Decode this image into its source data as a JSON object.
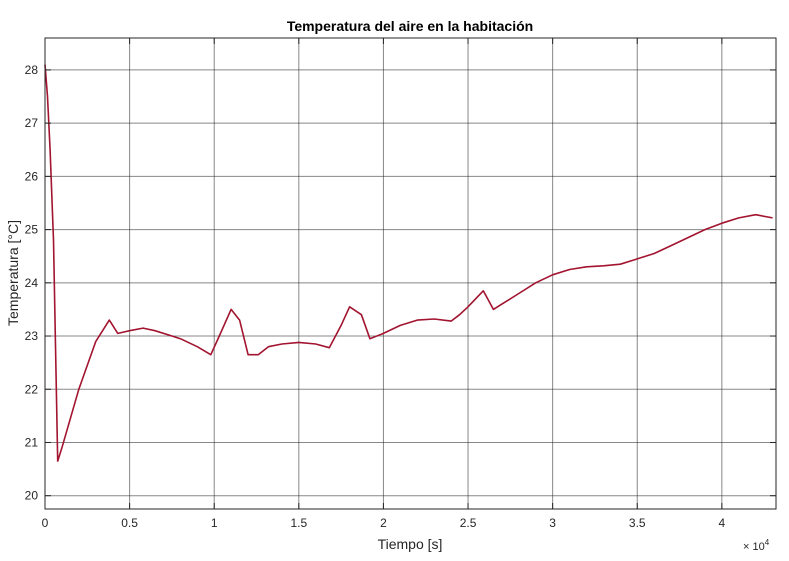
{
  "chart_data": {
    "type": "line",
    "title": "Temperatura del aire en la habitación",
    "xlabel": "Tiempo [s]",
    "ylabel": "Temperatura [°C]",
    "x_exponent_base": "× 10",
    "x_exponent_power": "4",
    "xlim": [
      0,
      43200
    ],
    "ylim": [
      19.75,
      28.6
    ],
    "x_ticks": [
      0,
      5000,
      10000,
      15000,
      20000,
      25000,
      30000,
      35000,
      40000
    ],
    "x_tick_labels": [
      "0",
      "0.5",
      "1",
      "1.5",
      "2",
      "2.5",
      "3",
      "3.5",
      "4"
    ],
    "y_ticks": [
      20,
      21,
      22,
      23,
      24,
      25,
      26,
      27,
      28
    ],
    "y_tick_labels": [
      "20",
      "21",
      "22",
      "23",
      "24",
      "25",
      "26",
      "27",
      "28"
    ],
    "grid": true,
    "colors": {
      "line": "#a2142f",
      "grid": "#262626",
      "axes": "#262626"
    },
    "series": [
      {
        "x": [
          0,
          150,
          300,
          500,
          750,
          1000,
          2000,
          3000,
          3800,
          4300,
          5000,
          5800,
          6500,
          7500,
          8000,
          9000,
          9800,
          10300,
          11000,
          11500,
          12000,
          12600,
          13200,
          14000,
          15000,
          16000,
          16800,
          17500,
          18000,
          18700,
          19200,
          20000,
          21000,
          22000,
          23000,
          24000,
          24500,
          25000,
          25900,
          26500,
          27000,
          28000,
          29000,
          30000,
          31000,
          32000,
          33000,
          34000,
          35000,
          36000,
          37000,
          38000,
          39000,
          40000,
          41000,
          42000,
          43000
        ],
        "y": [
          28.1,
          27.5,
          26.5,
          24.8,
          20.65,
          20.9,
          22.0,
          22.9,
          23.3,
          23.05,
          23.1,
          23.15,
          23.1,
          23.0,
          22.95,
          22.8,
          22.65,
          23.0,
          23.5,
          23.3,
          22.65,
          22.65,
          22.8,
          22.85,
          22.88,
          22.85,
          22.78,
          23.2,
          23.55,
          23.4,
          22.95,
          23.05,
          23.2,
          23.3,
          23.32,
          23.28,
          23.4,
          23.55,
          23.85,
          23.5,
          23.6,
          23.8,
          24.0,
          24.15,
          24.25,
          24.3,
          24.32,
          24.35,
          24.45,
          24.55,
          24.7,
          24.85,
          25.0,
          25.12,
          25.22,
          25.28,
          25.22
        ]
      }
    ]
  }
}
